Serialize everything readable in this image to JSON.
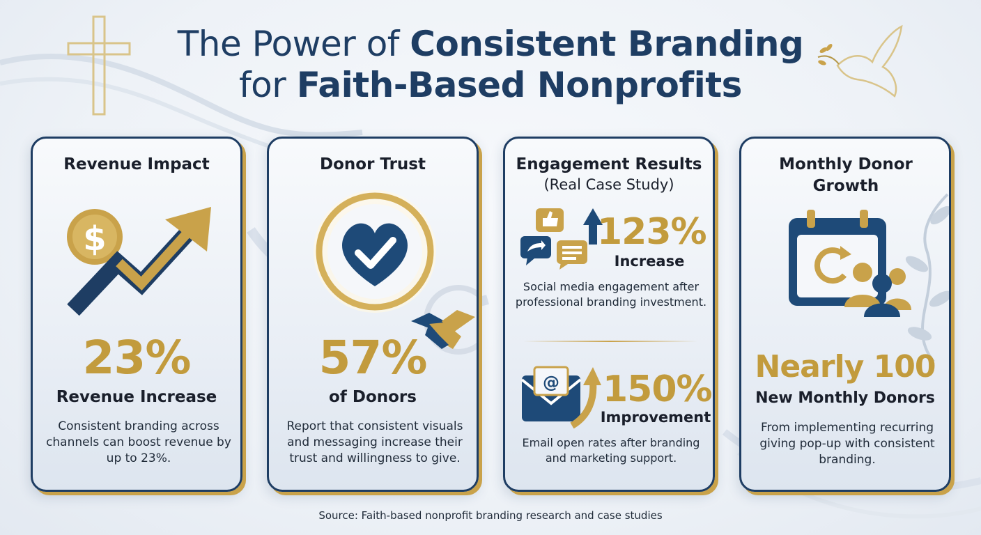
{
  "title": {
    "line1_light": "The Power of ",
    "line1_bold": "Consistent Branding",
    "line2_light": "for ",
    "line2_bold": "Faith-Based Nonprofits"
  },
  "colors": {
    "navy": "#1e3d63",
    "gold": "#c29b3d",
    "background": "#eef2f7"
  },
  "cards": [
    {
      "title": "Revenue Impact",
      "icon": "dollar-growth-arrow-icon",
      "stat": "23%",
      "stat_label": "Revenue Increase",
      "description": "Consistent branding across channels can boost revenue by up to 23%."
    },
    {
      "title": "Donor Trust",
      "icon": "heart-check-icon",
      "secondary_icon": "handshake-icon",
      "stat": "57%",
      "stat_label": "of Donors",
      "description": "Report that consistent visuals and messaging increase their trust and willingness to give."
    },
    {
      "title": "Engagement Results",
      "subtitle": "(Real Case Study)",
      "social": {
        "icon": "social-engagement-icon",
        "stat": "123%",
        "stat_label": "Increase",
        "description": "Social media engagement after professional branding investment."
      },
      "email": {
        "icon": "email-growth-icon",
        "stat": "150%",
        "stat_label": "Improvement",
        "description": "Email open rates after branding and marketing support."
      }
    },
    {
      "title": "Monthly Donor Growth",
      "icon": "calendar-donors-icon",
      "stat": "Nearly 100",
      "stat_label": "New Monthly Donors",
      "description": "From implementing recurring giving pop-up with consistent branding."
    }
  ],
  "source": "Source: Faith-based nonprofit branding research and case studies"
}
